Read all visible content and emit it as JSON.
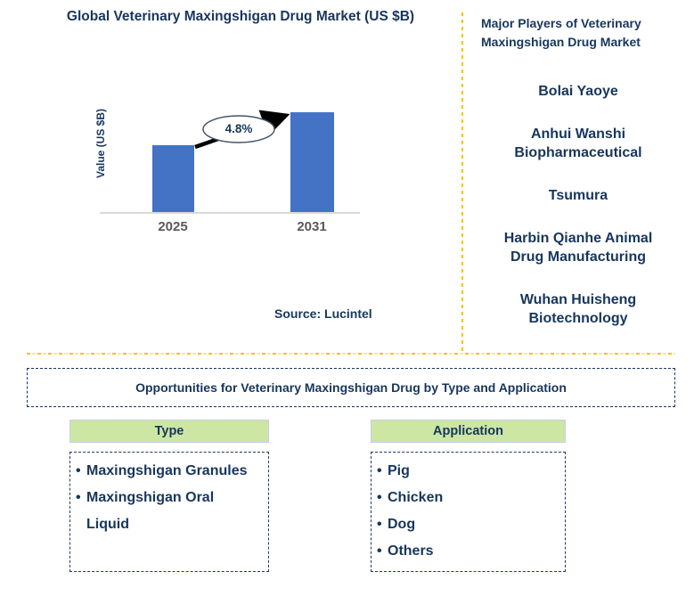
{
  "chart_data": {
    "type": "bar",
    "title": "Global Veterinary Maxingshigan Drug Market (US $B)",
    "ylabel": "Value (US $B)",
    "xlabel": "",
    "categories": [
      "2025",
      "2031"
    ],
    "values": [
      0.67,
      1.0
    ],
    "values_note": "no numeric value axis shown; bar heights are relative, 2031 vs 2025",
    "annotation": "4.8%",
    "bar_color": "#4472C4",
    "grid": false,
    "legend": false
  },
  "chart": {
    "source": "Source: Lucintel"
  },
  "players_panel": {
    "title": "Major Players of Veterinary\nMaxingshigan Drug Market",
    "players": [
      "Bolai Yaoye",
      "Anhui Wanshi Biopharmaceutical",
      "Tsumura",
      "Harbin Qianhe Animal Drug Manufacturing",
      "Wuhan Huisheng Biotechnology"
    ]
  },
  "opportunities": {
    "banner": "Opportunities for Veterinary Maxingshigan Drug by Type and Application",
    "type": {
      "header": "Type",
      "items": [
        "Maxingshigan Granules",
        "Maxingshigan Oral Liquid"
      ]
    },
    "application": {
      "header": "Application",
      "items": [
        "Pig",
        "Chicken",
        "Dog",
        "Others"
      ]
    }
  },
  "colors": {
    "navy": "#17365D",
    "bar_blue": "#4472C4",
    "gold_divider": "#FFC000",
    "pale_gold": "#FFE699",
    "header_green": "#CDE6A4",
    "axis_gray": "#D9D9D9",
    "tick_gray": "#595959"
  }
}
